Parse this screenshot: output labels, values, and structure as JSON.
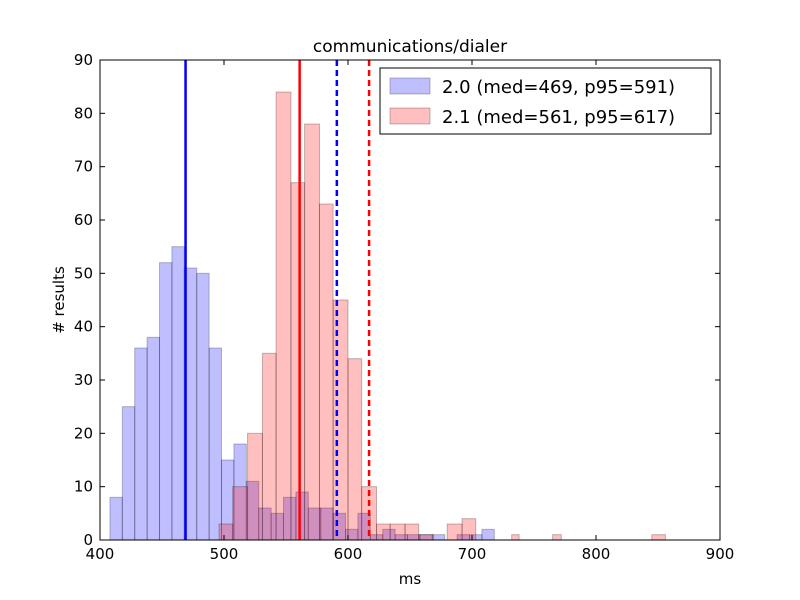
{
  "chart_data": {
    "type": "histogram",
    "title": "communications/dialer",
    "xlabel": "ms",
    "ylabel": "# results",
    "xlim": [
      400,
      900
    ],
    "ylim": [
      0,
      90
    ],
    "xticks": [
      400,
      500,
      600,
      700,
      800,
      900
    ],
    "yticks": [
      0,
      10,
      20,
      30,
      40,
      50,
      60,
      70,
      80,
      90
    ],
    "grid": false,
    "legend_position": "top-right",
    "series": [
      {
        "name": "2.0 (med=469, p95=591)",
        "fill_color": "#0000ff",
        "line_color": "#0000ff",
        "median": 469,
        "p95": 591,
        "bins": [
          [
            408,
            418,
            8
          ],
          [
            418,
            428,
            25
          ],
          [
            428,
            438,
            36
          ],
          [
            438,
            448,
            38
          ],
          [
            448,
            458,
            52
          ],
          [
            458,
            468,
            55
          ],
          [
            468,
            478,
            51
          ],
          [
            478,
            488,
            50
          ],
          [
            488,
            498,
            36
          ],
          [
            498,
            508,
            15
          ],
          [
            508,
            518,
            18
          ],
          [
            518,
            528,
            11
          ],
          [
            528,
            538,
            6
          ],
          [
            538,
            548,
            5
          ],
          [
            548,
            558,
            8
          ],
          [
            558,
            568,
            9
          ],
          [
            568,
            578,
            6
          ],
          [
            578,
            588,
            6
          ],
          [
            588,
            598,
            5
          ],
          [
            598,
            608,
            2
          ],
          [
            608,
            618,
            5
          ],
          [
            618,
            628,
            1
          ],
          [
            628,
            638,
            2
          ],
          [
            638,
            648,
            1
          ],
          [
            648,
            658,
            1
          ],
          [
            658,
            668,
            1
          ],
          [
            668,
            678,
            1
          ],
          [
            678,
            688,
            0
          ],
          [
            688,
            698,
            1
          ],
          [
            698,
            708,
            1
          ],
          [
            708,
            718,
            2
          ]
        ]
      },
      {
        "name": "2.1 (med=561, p95=617)",
        "fill_color": "#ff0000",
        "line_color": "#ff0000",
        "median": 561,
        "p95": 617,
        "bins": [
          [
            496,
            507,
            3
          ],
          [
            507,
            519,
            10
          ],
          [
            519,
            531,
            20
          ],
          [
            531,
            542,
            35
          ],
          [
            542,
            554,
            84
          ],
          [
            554,
            565,
            67
          ],
          [
            565,
            577,
            78
          ],
          [
            577,
            588,
            63
          ],
          [
            588,
            600,
            45
          ],
          [
            600,
            611,
            34
          ],
          [
            611,
            623,
            10
          ],
          [
            623,
            634,
            3
          ],
          [
            634,
            646,
            3
          ],
          [
            646,
            657,
            3
          ],
          [
            657,
            669,
            1
          ],
          [
            669,
            680,
            0
          ],
          [
            680,
            692,
            3
          ],
          [
            692,
            703,
            4
          ],
          [
            732,
            738,
            1
          ],
          [
            765,
            772,
            1
          ],
          [
            845,
            856,
            1
          ]
        ]
      }
    ]
  }
}
